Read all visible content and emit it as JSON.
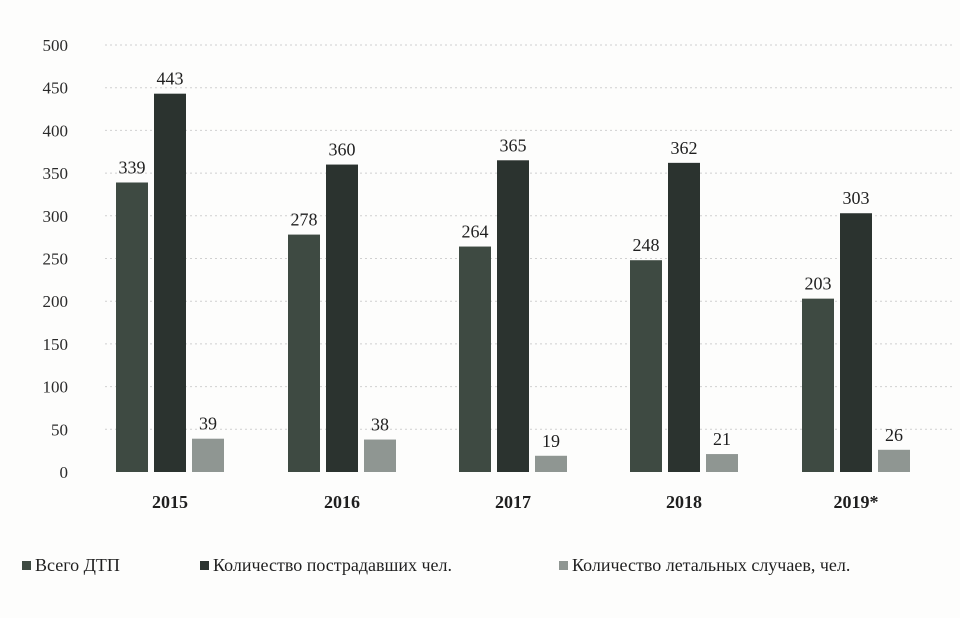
{
  "chart_data": {
    "type": "bar",
    "categories": [
      "2015",
      "2016",
      "2017",
      "2018",
      "2019*"
    ],
    "series": [
      {
        "name": "Всего ДТП",
        "values": [
          339,
          278,
          264,
          248,
          203
        ],
        "color": "#3e4a42"
      },
      {
        "name": "Количество пострадавших чел.",
        "values": [
          443,
          360,
          365,
          362,
          303
        ],
        "color": "#2b332f"
      },
      {
        "name": "Количество летальных случаев, чел.",
        "values": [
          39,
          38,
          19,
          21,
          26
        ],
        "color": "#8f9692"
      }
    ],
    "y_ticks": [
      "0",
      "50",
      "100",
      "150",
      "200",
      "250",
      "300",
      "350",
      "400",
      "450",
      "500"
    ],
    "ylim": [
      0,
      500
    ],
    "grid": true,
    "legend_position": "bottom"
  }
}
